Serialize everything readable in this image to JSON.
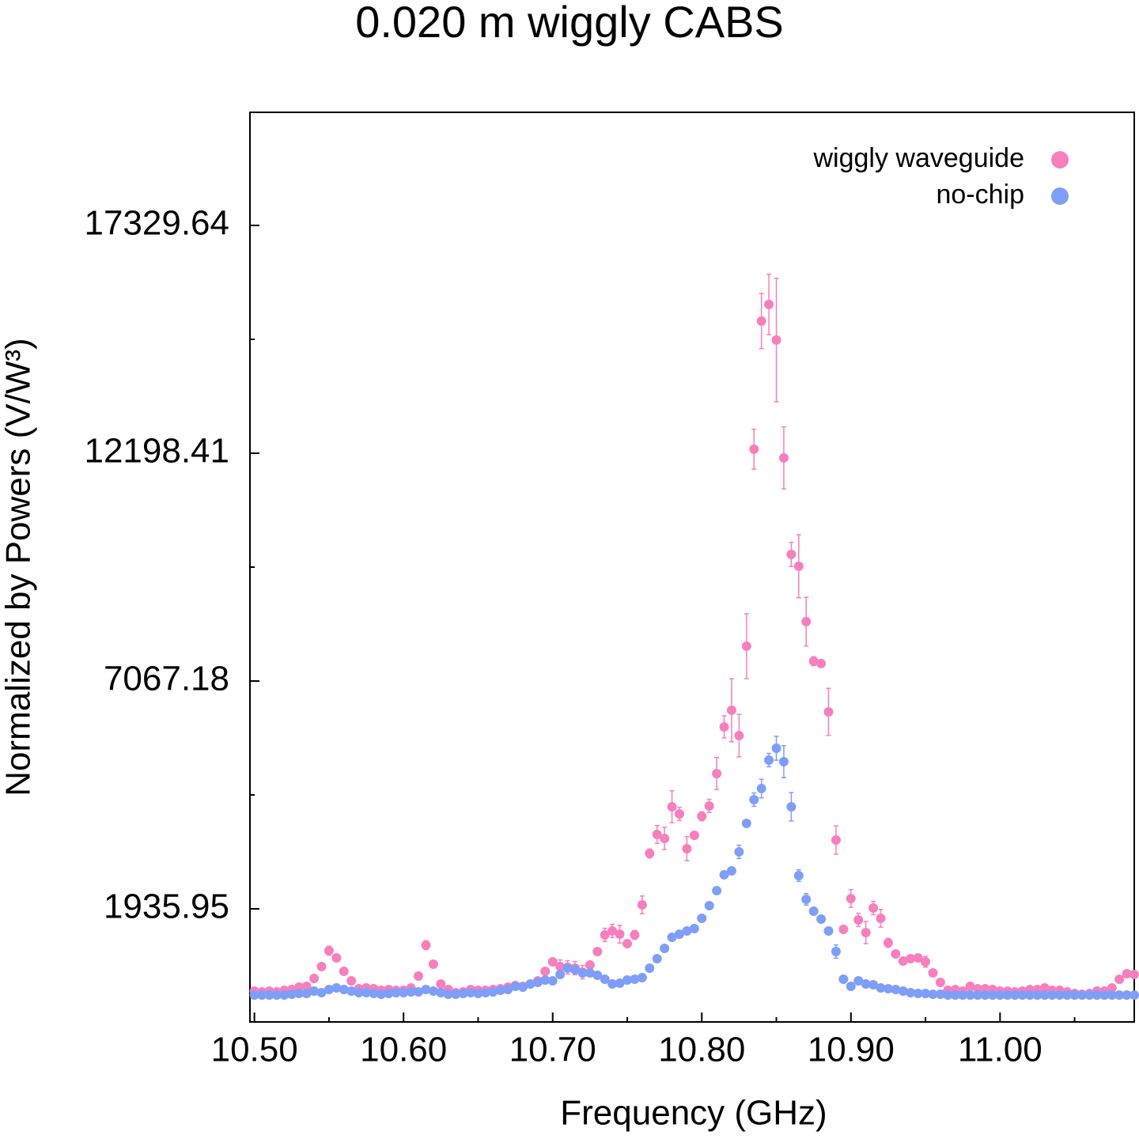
{
  "chart_data": {
    "type": "scatter",
    "title": "0.020 m wiggly CABS",
    "x_label": "Frequency (GHz)",
    "y_label": "Normalized by Powers (V/W³)",
    "xlim": [
      10.497,
      11.09
    ],
    "ylim": [
      -612,
      19877
    ],
    "xticks": [
      {
        "value": 10.5,
        "label": "10.50"
      },
      {
        "value": 10.6,
        "label": "10.60"
      },
      {
        "value": 10.7,
        "label": "10.70"
      },
      {
        "value": 10.8,
        "label": "10.80"
      },
      {
        "value": 10.9,
        "label": "10.90"
      },
      {
        "value": 11.0,
        "label": "11.00"
      }
    ],
    "xminorticks": [
      10.55,
      10.65,
      10.75,
      10.85,
      10.95,
      11.05
    ],
    "yticks": [
      1935.95,
      7067.18,
      12198.41,
      17329.64
    ],
    "yminorticks": [
      4501.565,
      9632.795,
      14764.025
    ],
    "legend": "upper right",
    "x": [
      10.5,
      10.505,
      10.51,
      10.515,
      10.52,
      10.525,
      10.53,
      10.535,
      10.54,
      10.545,
      10.55,
      10.555,
      10.56,
      10.565,
      10.57,
      10.575,
      10.58,
      10.585,
      10.59,
      10.595,
      10.6,
      10.605,
      10.61,
      10.615,
      10.62,
      10.625,
      10.63,
      10.635,
      10.64,
      10.645,
      10.65,
      10.655,
      10.66,
      10.665,
      10.67,
      10.675,
      10.68,
      10.685,
      10.69,
      10.695,
      10.7,
      10.705,
      10.71,
      10.715,
      10.72,
      10.725,
      10.73,
      10.735,
      10.74,
      10.745,
      10.75,
      10.755,
      10.76,
      10.765,
      10.77,
      10.775,
      10.78,
      10.785,
      10.79,
      10.795,
      10.8,
      10.805,
      10.81,
      10.815,
      10.82,
      10.825,
      10.83,
      10.835,
      10.84,
      10.845,
      10.85,
      10.855,
      10.86,
      10.865,
      10.87,
      10.875,
      10.88,
      10.885,
      10.89,
      10.895,
      10.9,
      10.905,
      10.91,
      10.915,
      10.92,
      10.925,
      10.93,
      10.935,
      10.94,
      10.945,
      10.95,
      10.955,
      10.96,
      10.965,
      10.97,
      10.975,
      10.98,
      10.985,
      10.99,
      10.995,
      11,
      11.005,
      11.01,
      11.015,
      11.02,
      11.025,
      11.03,
      11.035,
      11.04,
      11.045,
      11.05,
      11.055,
      11.06,
      11.065,
      11.07,
      11.075,
      11.08,
      11.085,
      11.09
    ],
    "series": [
      {
        "name": "wiggly waveguide",
        "color": "#f77fbe",
        "values": [
          83,
          65,
          83,
          65,
          101,
          119,
          172,
          190,
          368,
          635,
          992,
          831,
          528,
          315,
          136,
          154,
          136,
          101,
          119,
          101,
          101,
          154,
          421,
          1116,
          689,
          243,
          119,
          47,
          65,
          119,
          101,
          101,
          119,
          136,
          172,
          208,
          190,
          243,
          315,
          528,
          742,
          635,
          618,
          600,
          510,
          671,
          974,
          1348,
          1437,
          1366,
          1152,
          1348,
          2025,
          3183,
          3611,
          3522,
          4235,
          4074,
          3290,
          3593,
          4021,
          4253,
          4983,
          6034,
          6409,
          5838,
          7852,
          12289,
          15176,
          15550,
          14748,
          12093,
          9919,
          9652,
          8405,
          7514,
          7460,
          6373,
          3486,
          1473,
          2168,
          1686,
          1401,
          1954,
          1722,
          1170,
          920,
          760,
          813,
          831,
          742,
          493,
          279,
          101,
          119,
          83,
          190,
          136,
          136,
          119,
          83,
          83,
          65,
          83,
          119,
          119,
          154,
          101,
          101,
          65,
          29,
          12,
          29,
          83,
          83,
          154,
          350,
          475,
          457
        ],
        "errors": [
          40,
          40,
          40,
          40,
          40,
          40,
          40,
          40,
          40,
          40,
          100,
          40,
          40,
          40,
          40,
          40,
          40,
          40,
          40,
          40,
          40,
          40,
          40,
          100,
          60,
          40,
          40,
          40,
          40,
          40,
          40,
          40,
          40,
          40,
          40,
          40,
          40,
          40,
          40,
          40,
          40,
          150,
          150,
          150,
          150,
          40,
          40,
          150,
          150,
          200,
          40,
          100,
          200,
          100,
          200,
          250,
          360,
          150,
          270,
          40,
          100,
          150,
          360,
          250,
          710,
          480,
          730,
          450,
          620,
          680,
          1390,
          700,
          270,
          710,
          550,
          100,
          60,
          530,
          320,
          40,
          200,
          150,
          250,
          150,
          200,
          100,
          40,
          40,
          40,
          80,
          120,
          40,
          40,
          40,
          40,
          40,
          40,
          40,
          40,
          40,
          40,
          40,
          40,
          40,
          40,
          40,
          40,
          40,
          40,
          40,
          40,
          40,
          40,
          40,
          40,
          40,
          40,
          40,
          40
        ]
      },
      {
        "name": "no-chip",
        "color": "#7f9ef7",
        "values": [
          -6,
          -6,
          -6,
          -6,
          -6,
          12,
          29,
          29,
          83,
          47,
          119,
          154,
          119,
          83,
          47,
          47,
          29,
          12,
          29,
          47,
          47,
          65,
          65,
          119,
          83,
          47,
          12,
          12,
          29,
          47,
          29,
          47,
          65,
          101,
          119,
          190,
          172,
          243,
          279,
          332,
          315,
          457,
          600,
          564,
          493,
          493,
          439,
          350,
          243,
          261,
          332,
          350,
          386,
          600,
          813,
          1045,
          1295,
          1366,
          1437,
          1491,
          1722,
          2007,
          2346,
          2702,
          2791,
          3219,
          3860,
          4395,
          4645,
          5286,
          5553,
          5250,
          4235,
          2684,
          2150,
          1883,
          1704,
          1437,
          974,
          350,
          190,
          315,
          243,
          226,
          154,
          136,
          119,
          83,
          47,
          29,
          29,
          12,
          12,
          -6,
          -6,
          -6,
          -6,
          -6,
          -6,
          -6,
          -6,
          -6,
          -6,
          -6,
          -6,
          -6,
          -6,
          -6,
          -6,
          -6,
          -6,
          -6,
          -6,
          -6,
          -6,
          -6,
          -6,
          -6,
          -6
        ],
        "errors": [
          30,
          30,
          30,
          30,
          30,
          30,
          30,
          30,
          30,
          30,
          30,
          30,
          30,
          30,
          30,
          30,
          30,
          30,
          30,
          30,
          30,
          30,
          30,
          30,
          30,
          30,
          30,
          30,
          30,
          30,
          30,
          30,
          30,
          30,
          30,
          30,
          30,
          30,
          30,
          30,
          30,
          30,
          30,
          30,
          30,
          30,
          30,
          30,
          30,
          30,
          30,
          30,
          30,
          30,
          30,
          30,
          30,
          30,
          30,
          30,
          30,
          30,
          30,
          30,
          30,
          150,
          30,
          150,
          210,
          150,
          270,
          360,
          320,
          130,
          130,
          30,
          30,
          30,
          150,
          30,
          30,
          30,
          30,
          30,
          30,
          30,
          30,
          30,
          30,
          30,
          30,
          30,
          30,
          30,
          30,
          30,
          30,
          30,
          30,
          30,
          30,
          30,
          30,
          30,
          30,
          30,
          30,
          30,
          30,
          30,
          30,
          30,
          30,
          30,
          30,
          30,
          30,
          30,
          30
        ]
      }
    ]
  }
}
